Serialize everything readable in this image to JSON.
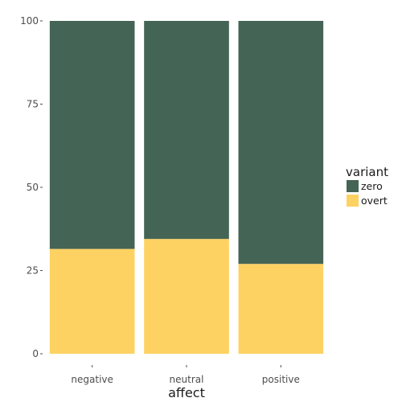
{
  "chart_data": {
    "type": "bar",
    "stacked": true,
    "categories": [
      "negative",
      "neutral",
      "positive"
    ],
    "series": [
      {
        "name": "overt",
        "values": [
          31.5,
          34.5,
          27
        ],
        "color": "#FDD262"
      },
      {
        "name": "zero",
        "values": [
          68.5,
          65.5,
          73
        ],
        "color": "#446455"
      }
    ],
    "xlabel": "affect",
    "ylabel": "",
    "ylim": [
      0,
      100
    ],
    "yticks": [
      "0",
      "25",
      "50",
      "75",
      "100"
    ],
    "grid": false,
    "legend": {
      "title": "variant",
      "position": "right",
      "entries": [
        {
          "name": "zero",
          "color": "#446455"
        },
        {
          "name": "overt",
          "color": "#FDD262"
        }
      ]
    }
  }
}
